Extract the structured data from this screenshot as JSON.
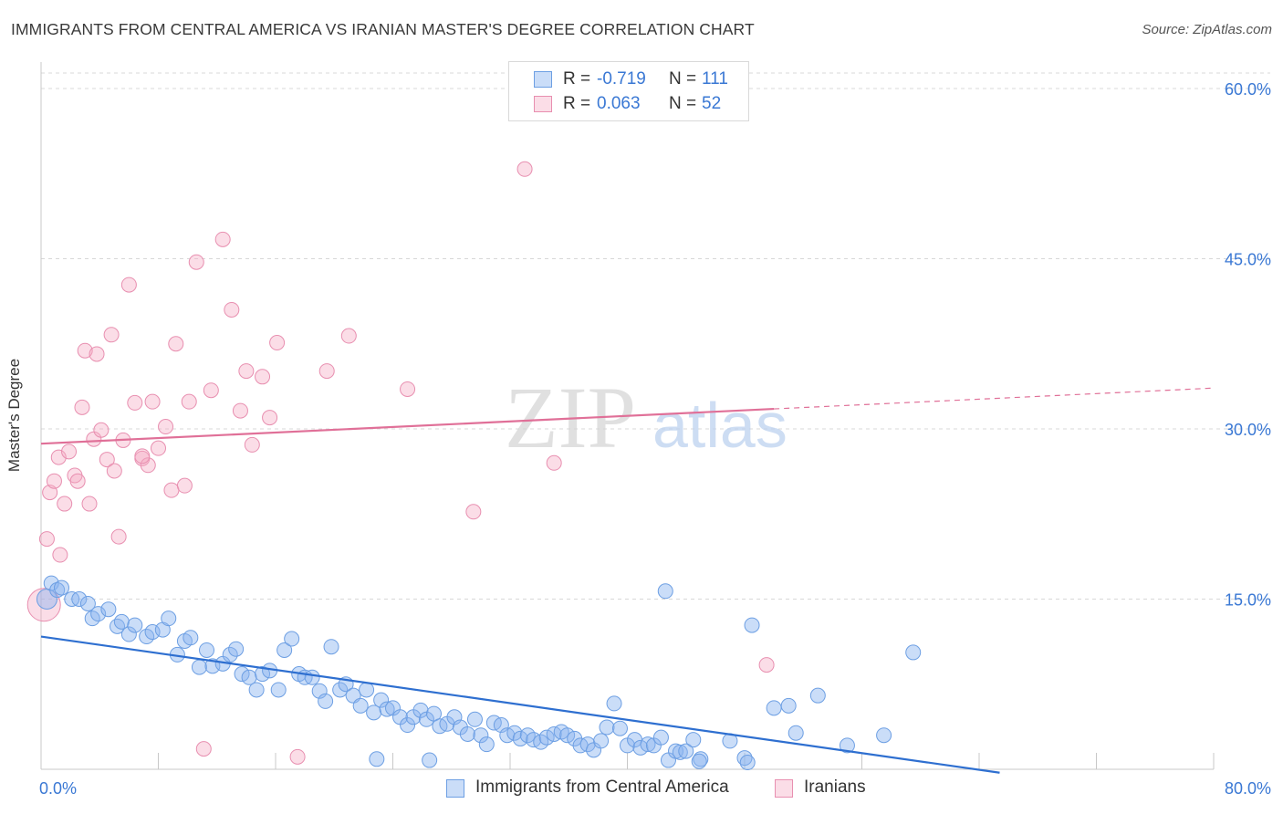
{
  "title": "IMMIGRANTS FROM CENTRAL AMERICA VS IRANIAN MASTER'S DEGREE CORRELATION CHART",
  "source": "Source: ZipAtlas.com",
  "watermark": {
    "zip": "ZIP",
    "atlas": "atlas"
  },
  "colors": {
    "blue_fill": "rgba(137,180,240,0.45)",
    "blue_stroke": "#6d9fe3",
    "blue_line": "#2e6fd0",
    "pink_fill": "rgba(244,170,196,0.40)",
    "pink_stroke": "#e88fb0",
    "pink_line": "#e07098",
    "tick_label": "#3a78d4",
    "grid": "#d8d8d8"
  },
  "stats": [
    {
      "r_label": "R =",
      "r_value": "-0.719",
      "n_label": "N =",
      "n_value": "111",
      "series": "blue"
    },
    {
      "r_label": "R =",
      "r_value": "0.063",
      "n_label": "N =",
      "n_value": "52",
      "series": "pink"
    }
  ],
  "legend": [
    {
      "label": "Immigrants from Central America",
      "series": "blue"
    },
    {
      "label": "Iranians",
      "series": "pink"
    }
  ],
  "chart_data": {
    "type": "scatter",
    "title": "IMMIGRANTS FROM CENTRAL AMERICA VS IRANIAN MASTER'S DEGREE CORRELATION CHART",
    "xlabel": "",
    "ylabel": "Master's Degree",
    "xlim": [
      0,
      80
    ],
    "ylim": [
      0,
      60
    ],
    "x_tick_labels": [
      {
        "value": 0,
        "label": "0.0%"
      },
      {
        "value": 80,
        "label": "80.0%"
      }
    ],
    "y_tick_labels": [
      {
        "value": 15,
        "label": "15.0%"
      },
      {
        "value": 30,
        "label": "30.0%"
      },
      {
        "value": 45,
        "label": "45.0%"
      },
      {
        "value": 60,
        "label": "60.0%"
      }
    ],
    "grid": "horizontal dashed",
    "series": [
      {
        "name": "Immigrants from Central America",
        "color": "blue",
        "trend": {
          "x": [
            0,
            65.4
          ],
          "y": [
            11.7,
            -0.3
          ]
        },
        "points": [
          [
            0.4,
            15.0
          ],
          [
            0.7,
            16.4
          ],
          [
            1.1,
            15.8
          ],
          [
            1.4,
            16.0
          ],
          [
            2.1,
            15.0
          ],
          [
            2.6,
            15.0
          ],
          [
            3.2,
            14.6
          ],
          [
            3.5,
            13.3
          ],
          [
            3.9,
            13.7
          ],
          [
            4.6,
            14.1
          ],
          [
            5.2,
            12.6
          ],
          [
            5.5,
            13.0
          ],
          [
            6.0,
            11.9
          ],
          [
            6.4,
            12.7
          ],
          [
            7.2,
            11.7
          ],
          [
            7.6,
            12.1
          ],
          [
            8.3,
            12.3
          ],
          [
            8.7,
            13.3
          ],
          [
            9.3,
            10.1
          ],
          [
            9.8,
            11.3
          ],
          [
            10.2,
            11.6
          ],
          [
            10.8,
            9.0
          ],
          [
            11.3,
            10.5
          ],
          [
            11.7,
            9.1
          ],
          [
            12.4,
            9.3
          ],
          [
            12.9,
            10.1
          ],
          [
            13.3,
            10.6
          ],
          [
            13.7,
            8.4
          ],
          [
            14.2,
            8.1
          ],
          [
            14.7,
            7.0
          ],
          [
            15.1,
            8.4
          ],
          [
            15.6,
            8.7
          ],
          [
            16.2,
            7.0
          ],
          [
            16.6,
            10.5
          ],
          [
            17.1,
            11.5
          ],
          [
            17.6,
            8.4
          ],
          [
            18.0,
            8.1
          ],
          [
            18.5,
            8.1
          ],
          [
            19.0,
            6.9
          ],
          [
            19.4,
            6.0
          ],
          [
            19.8,
            10.8
          ],
          [
            20.4,
            7.0
          ],
          [
            20.8,
            7.5
          ],
          [
            21.3,
            6.5
          ],
          [
            21.8,
            5.6
          ],
          [
            22.2,
            7.0
          ],
          [
            22.7,
            5.0
          ],
          [
            23.2,
            6.1
          ],
          [
            23.6,
            5.3
          ],
          [
            24.0,
            5.4
          ],
          [
            24.5,
            4.6
          ],
          [
            25.0,
            3.9
          ],
          [
            25.4,
            4.6
          ],
          [
            25.9,
            5.2
          ],
          [
            26.3,
            4.4
          ],
          [
            26.8,
            4.9
          ],
          [
            27.2,
            3.8
          ],
          [
            27.7,
            4.0
          ],
          [
            28.2,
            4.6
          ],
          [
            28.6,
            3.7
          ],
          [
            29.1,
            3.1
          ],
          [
            29.6,
            4.4
          ],
          [
            30.0,
            3.0
          ],
          [
            30.4,
            2.2
          ],
          [
            30.9,
            4.1
          ],
          [
            31.4,
            3.9
          ],
          [
            31.8,
            3.0
          ],
          [
            32.3,
            3.2
          ],
          [
            32.7,
            2.7
          ],
          [
            33.2,
            3.0
          ],
          [
            33.6,
            2.6
          ],
          [
            34.1,
            2.4
          ],
          [
            34.5,
            2.8
          ],
          [
            35.0,
            3.1
          ],
          [
            35.5,
            3.3
          ],
          [
            35.9,
            3.0
          ],
          [
            36.4,
            2.7
          ],
          [
            36.8,
            2.1
          ],
          [
            37.3,
            2.2
          ],
          [
            37.7,
            1.7
          ],
          [
            38.2,
            2.5
          ],
          [
            38.6,
            3.7
          ],
          [
            39.1,
            5.8
          ],
          [
            39.5,
            3.6
          ],
          [
            40.0,
            2.1
          ],
          [
            40.5,
            2.6
          ],
          [
            40.9,
            1.9
          ],
          [
            41.4,
            2.2
          ],
          [
            41.8,
            2.1
          ],
          [
            42.3,
            2.8
          ],
          [
            42.6,
            15.7
          ],
          [
            42.8,
            0.8
          ],
          [
            43.3,
            1.6
          ],
          [
            43.6,
            1.5
          ],
          [
            44.0,
            1.6
          ],
          [
            44.5,
            2.6
          ],
          [
            45.0,
            0.9
          ],
          [
            47.0,
            2.5
          ],
          [
            48.0,
            1.0
          ],
          [
            48.5,
            12.7
          ],
          [
            50.0,
            5.4
          ],
          [
            51.0,
            5.6
          ],
          [
            51.5,
            3.2
          ],
          [
            53.0,
            6.5
          ],
          [
            55.0,
            2.1
          ],
          [
            57.5,
            3.0
          ],
          [
            59.5,
            10.3
          ],
          [
            48.2,
            0.6
          ],
          [
            44.9,
            0.7
          ],
          [
            26.5,
            0.8
          ],
          [
            22.9,
            0.9
          ]
        ]
      },
      {
        "name": "Iranians",
        "color": "pink",
        "trend": {
          "x": [
            0,
            80
          ],
          "y": [
            28.7,
            33.6
          ],
          "solid_until_x": 50
        },
        "points": [
          [
            0.2,
            14.5
          ],
          [
            0.4,
            20.3
          ],
          [
            0.6,
            24.4
          ],
          [
            0.9,
            25.4
          ],
          [
            1.2,
            27.5
          ],
          [
            1.3,
            18.9
          ],
          [
            1.6,
            23.4
          ],
          [
            1.9,
            28.0
          ],
          [
            2.3,
            25.9
          ],
          [
            2.5,
            25.4
          ],
          [
            2.8,
            31.9
          ],
          [
            3.0,
            36.9
          ],
          [
            3.3,
            23.4
          ],
          [
            3.6,
            29.1
          ],
          [
            3.8,
            36.6
          ],
          [
            4.1,
            29.9
          ],
          [
            4.5,
            27.3
          ],
          [
            4.8,
            38.3
          ],
          [
            5.0,
            26.3
          ],
          [
            5.3,
            20.5
          ],
          [
            5.6,
            29.0
          ],
          [
            6.0,
            42.7
          ],
          [
            6.4,
            32.3
          ],
          [
            6.9,
            27.4
          ],
          [
            7.3,
            26.8
          ],
          [
            7.6,
            32.4
          ],
          [
            8.0,
            28.3
          ],
          [
            8.5,
            30.2
          ],
          [
            8.9,
            24.6
          ],
          [
            9.2,
            37.5
          ],
          [
            9.8,
            25.0
          ],
          [
            10.1,
            32.4
          ],
          [
            10.6,
            44.7
          ],
          [
            11.1,
            1.8
          ],
          [
            11.6,
            33.4
          ],
          [
            12.4,
            46.7
          ],
          [
            13.0,
            40.5
          ],
          [
            13.6,
            31.6
          ],
          [
            14.0,
            35.1
          ],
          [
            14.4,
            28.6
          ],
          [
            15.1,
            34.6
          ],
          [
            15.6,
            31.0
          ],
          [
            16.1,
            37.6
          ],
          [
            17.5,
            1.1
          ],
          [
            19.5,
            35.1
          ],
          [
            21.0,
            38.2
          ],
          [
            25.0,
            33.5
          ],
          [
            29.5,
            22.7
          ],
          [
            33.0,
            52.9
          ],
          [
            35.0,
            27.0
          ],
          [
            49.5,
            9.2
          ],
          [
            6.9,
            27.6
          ]
        ]
      }
    ]
  }
}
